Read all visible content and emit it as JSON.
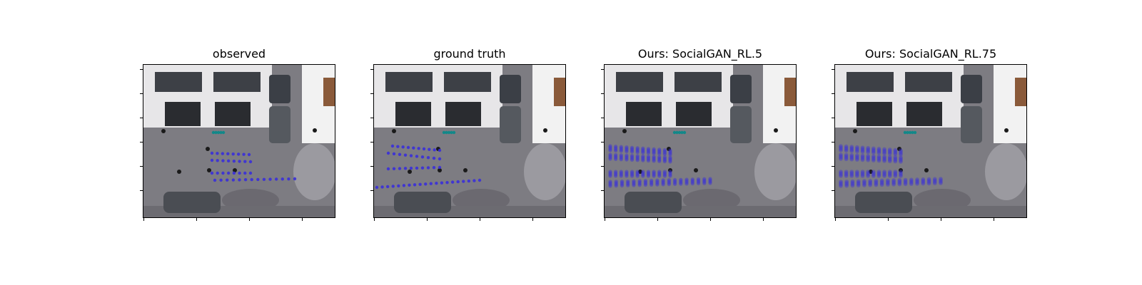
{
  "panels": [
    {
      "title": "observed",
      "variant": "observed"
    },
    {
      "title": "ground truth",
      "variant": "truth"
    },
    {
      "title": "Ours: SocialGAN_RL.5",
      "variant": "pred5"
    },
    {
      "title": "Ours: SocialGAN_RL.75",
      "variant": "pred75"
    }
  ],
  "colors": {
    "observed_track": "#008b8b",
    "future_track": "#3a2fd9",
    "pavement": "#7d7c82",
    "building": "#e7e6e8"
  }
}
